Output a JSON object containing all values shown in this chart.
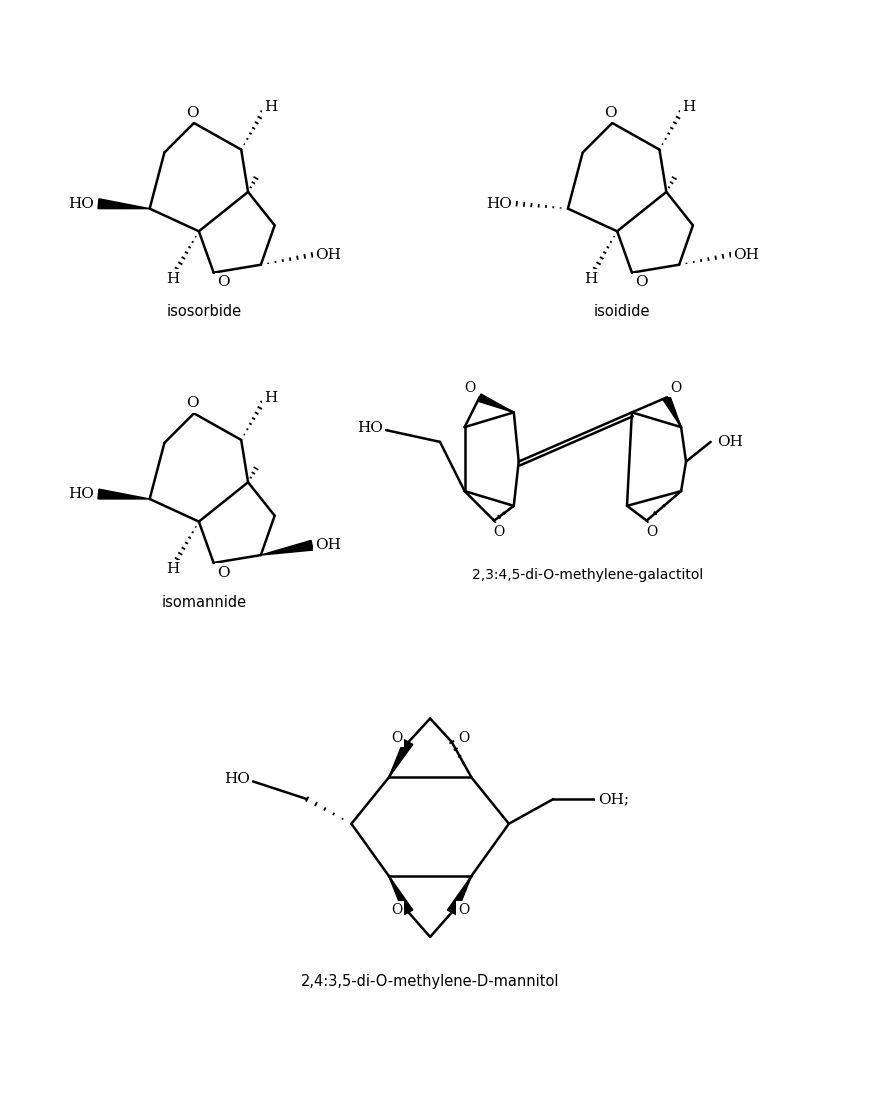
{
  "bg_color": "#ffffff",
  "line_color": "#000000",
  "text_color": "#000000",
  "label_isosorbide": "isosorbide",
  "label_isoidide": "isoidide",
  "label_isomannide": "isomannide",
  "label_galactitol": "2,3:4,5-di-O-methylene-galactitol",
  "label_mannitol": "2,4:3,5-di-O-methylene-D-mannitol"
}
